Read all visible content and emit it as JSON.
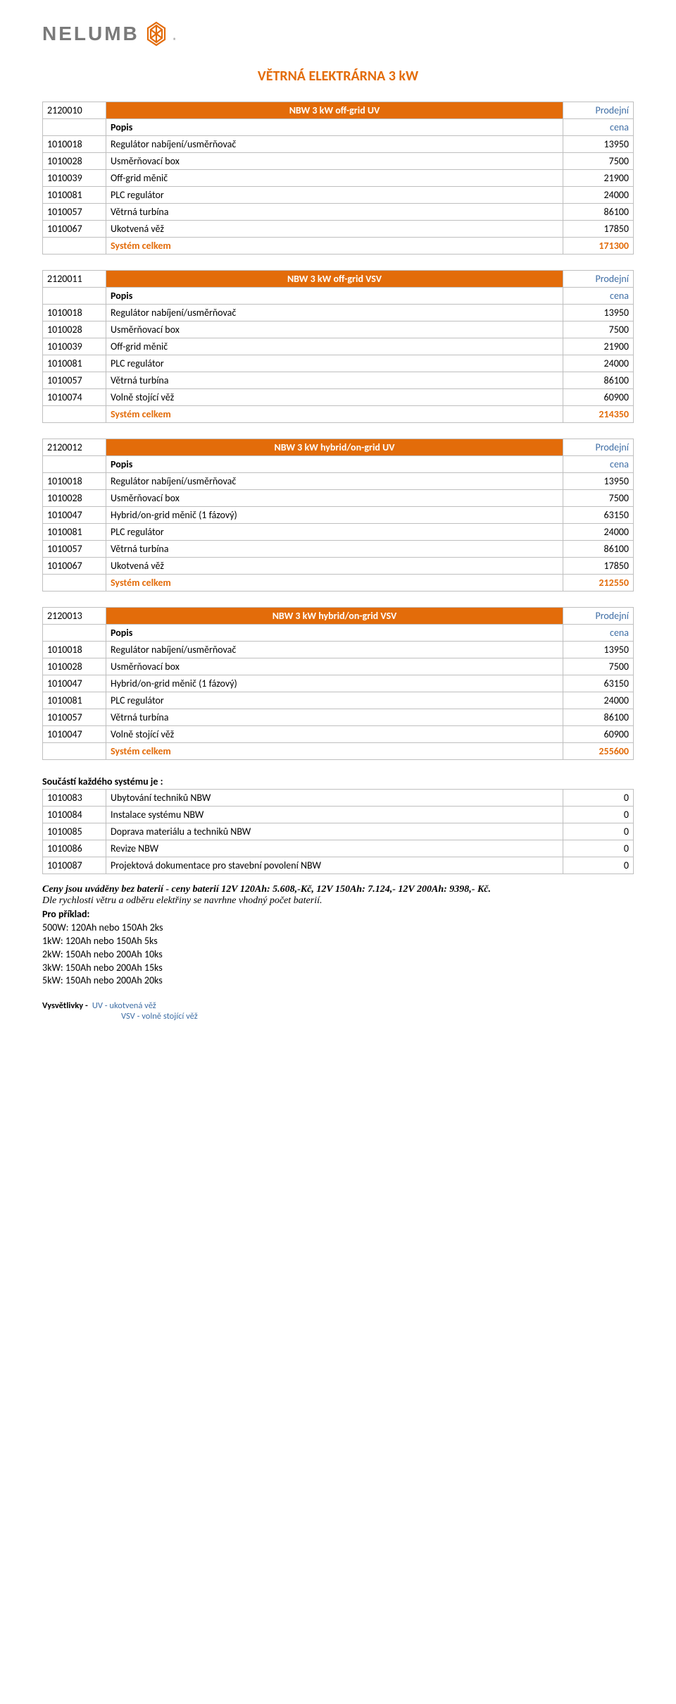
{
  "logo": {
    "text": "NELUMB",
    "icon_color": "#e36c0a",
    "trademark": "®"
  },
  "page_title": "VĚTRNÁ ELEKTRÁRNA 3 kW",
  "labels": {
    "popis": "Popis",
    "cena": "cena",
    "total": "Systém celkem",
    "prodejni": "Prodejní"
  },
  "tables": [
    {
      "code": "2120010",
      "name": "NBW 3 kW off-grid UV",
      "rows": [
        {
          "c": "1010018",
          "d": "Regulátor nabíjení/usměrňovač",
          "p": "13950"
        },
        {
          "c": "1010028",
          "d": "Usměrňovací box",
          "p": "7500"
        },
        {
          "c": "1010039",
          "d": "Off-grid měnič",
          "p": "21900"
        },
        {
          "c": "1010081",
          "d": "PLC regulátor",
          "p": "24000"
        },
        {
          "c": "1010057",
          "d": "Větrná turbína",
          "p": "86100"
        },
        {
          "c": "1010067",
          "d": "Ukotvená věž",
          "p": "17850"
        }
      ],
      "total": "171300"
    },
    {
      "code": "2120011",
      "name": "NBW 3 kW off-grid VSV",
      "rows": [
        {
          "c": "1010018",
          "d": "Regulátor nabíjení/usměrňovač",
          "p": "13950"
        },
        {
          "c": "1010028",
          "d": "Usměrňovací box",
          "p": "7500"
        },
        {
          "c": "1010039",
          "d": "Off-grid měnič",
          "p": "21900"
        },
        {
          "c": "1010081",
          "d": "PLC regulátor",
          "p": "24000"
        },
        {
          "c": "1010057",
          "d": "Větrná turbína",
          "p": "86100"
        },
        {
          "c": "1010074",
          "d": "Volně stojící věž",
          "p": "60900"
        }
      ],
      "total": "214350"
    },
    {
      "code": "2120012",
      "name": "NBW 3 kW hybrid/on-grid UV",
      "rows": [
        {
          "c": "1010018",
          "d": "Regulátor nabíjení/usměrňovač",
          "p": "13950"
        },
        {
          "c": "1010028",
          "d": "Usměrňovací box",
          "p": "7500"
        },
        {
          "c": "1010047",
          "d": "Hybrid/on-grid měnič (1 fázový)",
          "p": "63150"
        },
        {
          "c": "1010081",
          "d": "PLC regulátor",
          "p": "24000"
        },
        {
          "c": "1010057",
          "d": "Větrná turbína",
          "p": "86100"
        },
        {
          "c": "1010067",
          "d": "Ukotvená věž",
          "p": "17850"
        }
      ],
      "total": "212550"
    },
    {
      "code": "2120013",
      "name": "NBW 3 kW hybrid/on-grid VSV",
      "rows": [
        {
          "c": "1010018",
          "d": "Regulátor nabíjení/usměrňovač",
          "p": "13950"
        },
        {
          "c": "1010028",
          "d": "Usměrňovací box",
          "p": "7500"
        },
        {
          "c": "1010047",
          "d": "Hybrid/on-grid měnič (1 fázový)",
          "p": "63150"
        },
        {
          "c": "1010081",
          "d": "PLC regulátor",
          "p": "24000"
        },
        {
          "c": "1010057",
          "d": "Větrná turbína",
          "p": "86100"
        },
        {
          "c": "1010047",
          "d": "Volně stojící věž",
          "p": "60900"
        }
      ],
      "total": "255600"
    }
  ],
  "included": {
    "title": "Součástí každého systému je :",
    "rows": [
      {
        "c": "1010083",
        "d": "Ubytování techniků NBW",
        "p": "0"
      },
      {
        "c": "1010084",
        "d": "Instalace systému NBW",
        "p": "0"
      },
      {
        "c": "1010085",
        "d": "Doprava materiálu a techniků NBW",
        "p": "0"
      },
      {
        "c": "1010086",
        "d": "Revize NBW",
        "p": "0"
      },
      {
        "c": "1010087",
        "d": "Projektová dokumentace pro stavební povolení NBW",
        "p": "0"
      }
    ]
  },
  "notes": {
    "line1": "Ceny jsou uváděny bez baterií - ceny baterií 12V 120Ah: 5.608,-Kč, 12V 150Ah: 7.124,- 12V 200Ah: 9398,- Kč.",
    "line2": "Dle rychlosti větru a odběru elektřiny se navrhne vhodný počet baterií.",
    "example_title": "Pro příklad:",
    "examples": [
      "500W: 120Ah nebo 150Ah 2ks",
      "1kW: 120Ah nebo 150Ah 5ks",
      "2kW: 150Ah nebo 200Ah 10ks",
      "3kW: 150Ah nebo 200Ah 15ks",
      "5kW: 150Ah nebo 200Ah 20ks"
    ]
  },
  "legend": {
    "label": "Vysvětlivky -",
    "items": [
      "UV - ukotvená věž",
      "VSV - volně stojící věž"
    ]
  },
  "colors": {
    "accent": "#e36c0a",
    "link_blue": "#3f6ea5",
    "border": "#bfbfbf",
    "logo_gray": "#7a7a7a"
  }
}
